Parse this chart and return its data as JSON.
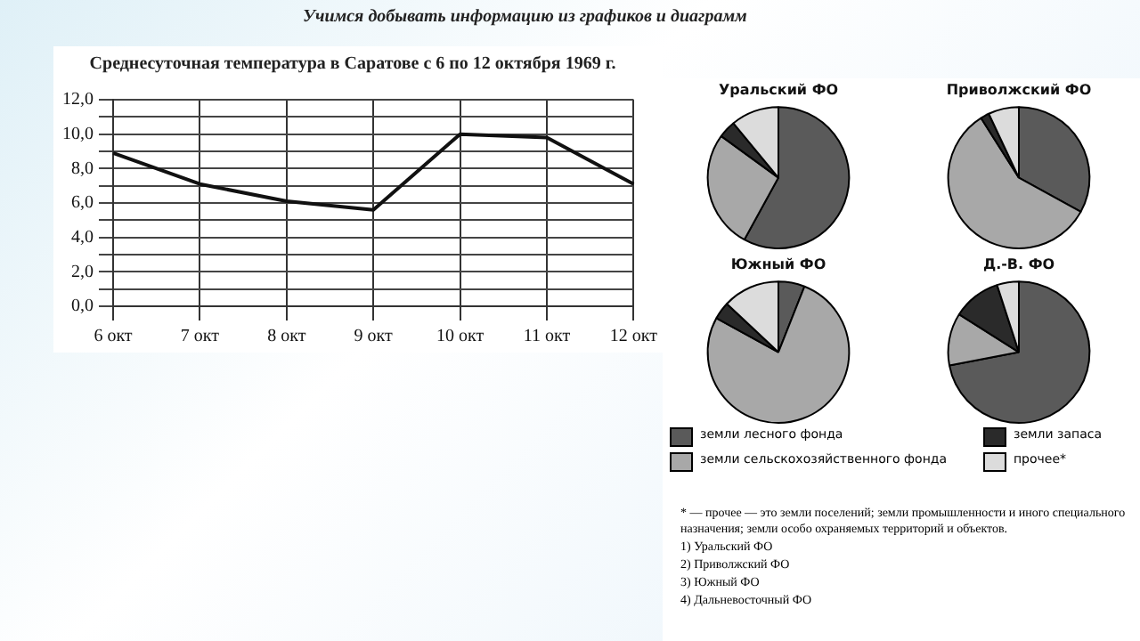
{
  "chart_data": [
    {
      "type": "line",
      "title": "Среднесуточная температура в Саратове с 6 по 12 октября 1969 г.",
      "annotations": [
        "Учимся добывать информацию из графиков и диаграмм"
      ],
      "categories": [
        "6 окт",
        "7 окт",
        "8 окт",
        "9 окт",
        "10 окт",
        "11 окт",
        "12 окт"
      ],
      "series": [
        {
          "color": "#111111",
          "values": [
            8.9,
            7.1,
            6.1,
            5.6,
            10.0,
            9.8,
            7.1
          ]
        }
      ],
      "ylim": [
        0,
        12
      ],
      "yticks": [
        {
          "value": 0,
          "label": "0,0"
        },
        {
          "value": 1,
          "label": null
        },
        {
          "value": 2,
          "label": "2,0"
        },
        {
          "value": 3,
          "label": null
        },
        {
          "value": 4,
          "label": "4,0"
        },
        {
          "value": 5,
          "label": null
        },
        {
          "value": 6,
          "label": "6,0"
        },
        {
          "value": 7,
          "label": null
        },
        {
          "value": 8,
          "label": "8,0"
        },
        {
          "value": 9,
          "label": null
        },
        {
          "value": 10,
          "label": "10,0"
        },
        {
          "value": 11,
          "label": null
        },
        {
          "value": 12,
          "label": "12,0"
        }
      ],
      "grid": true,
      "marker": "none",
      "line_style": "solid",
      "legend": false
    },
    {
      "type": "pie",
      "title": "Уральский ФО",
      "categories": [
        null,
        null,
        null,
        null
      ],
      "values": [
        58,
        27,
        4,
        11
      ],
      "colors": [
        "#5a5a5a",
        "#a8a8a8",
        "#2a2a2a",
        "#dcdcdc"
      ],
      "legend": false
    },
    {
      "type": "pie",
      "title": "Приволжский ФО",
      "categories": [
        null,
        null,
        null,
        null
      ],
      "values": [
        33,
        58,
        2,
        7
      ],
      "colors": [
        "#5a5a5a",
        "#a8a8a8",
        "#2a2a2a",
        "#dcdcdc"
      ],
      "legend": false
    },
    {
      "type": "pie",
      "title": "Южный ФО",
      "categories": [
        null,
        null,
        null,
        null
      ],
      "values": [
        6,
        77,
        4,
        13
      ],
      "colors": [
        "#5a5a5a",
        "#a8a8a8",
        "#2a2a2a",
        "#dcdcdc"
      ],
      "legend": false
    },
    {
      "type": "pie",
      "title": "Д.-В. ФО",
      "categories": [
        "земли лесного фонда",
        "земли сельскохозяйственного фонда",
        "земли запаса",
        "прочее*"
      ],
      "values": [
        72,
        12,
        11,
        5
      ],
      "colors": [
        "#5a5a5a",
        "#a8a8a8",
        "#2a2a2a",
        "#dcdcdc"
      ],
      "legend": "bottom",
      "annotations": [
        "* — прочее — это земли поселений; земли промышленности и иного специального назначения; земли особо охраняемых территорий и объектов.",
        "1) Уральский ФО",
        "2) Приволжский ФО",
        "3) Южный ФО",
        "4) Дальневосточный ФО"
      ]
    }
  ]
}
